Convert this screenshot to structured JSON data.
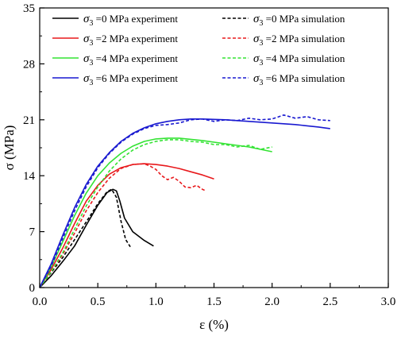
{
  "chart_data": {
    "type": "line",
    "xlabel": "ε (%)",
    "ylabel": "σ (MPa)",
    "xlim": [
      0.0,
      3.0
    ],
    "ylim": [
      0,
      35
    ],
    "x_ticks": [
      "0.0",
      "0.5",
      "1.0",
      "1.5",
      "2.0",
      "2.5",
      "3.0"
    ],
    "y_ticks": [
      "0",
      "7",
      "14",
      "21",
      "28",
      "35"
    ],
    "grid": false,
    "legend_position": "top",
    "legend_columns": 2,
    "series": [
      {
        "name": "σ3 =0 MPa experiment",
        "label_pre": "σ",
        "label_sub": "3",
        "label_post": " =0 MPa experiment",
        "color": "#000000",
        "style": "solid",
        "points": [
          [
            0,
            0
          ],
          [
            0.1,
            1.5
          ],
          [
            0.2,
            3.3
          ],
          [
            0.3,
            5.2
          ],
          [
            0.4,
            7.8
          ],
          [
            0.5,
            10.3
          ],
          [
            0.58,
            11.9
          ],
          [
            0.63,
            12.3
          ],
          [
            0.66,
            12.1
          ],
          [
            0.69,
            10.8
          ],
          [
            0.73,
            8.7
          ],
          [
            0.8,
            7.0
          ],
          [
            0.9,
            5.9
          ],
          [
            0.98,
            5.2
          ]
        ]
      },
      {
        "name": "σ3 =0 MPa simulation",
        "label_pre": "σ",
        "label_sub": "3",
        "label_post": " =0 MPa simulation",
        "color": "#000000",
        "style": "dashed",
        "points": [
          [
            0,
            0
          ],
          [
            0.1,
            1.9
          ],
          [
            0.2,
            3.8
          ],
          [
            0.3,
            6.0
          ],
          [
            0.4,
            8.2
          ],
          [
            0.5,
            10.5
          ],
          [
            0.58,
            12.0
          ],
          [
            0.62,
            12.3
          ],
          [
            0.66,
            11.3
          ],
          [
            0.7,
            8.3
          ],
          [
            0.74,
            6.0
          ],
          [
            0.78,
            5.1
          ]
        ]
      },
      {
        "name": "σ3 =2 MPa experiment",
        "label_pre": "σ",
        "label_sub": "3",
        "label_post": " =2 MPa experiment",
        "color": "#e8191c",
        "style": "solid",
        "points": [
          [
            0,
            0
          ],
          [
            0.1,
            2.3
          ],
          [
            0.2,
            5.0
          ],
          [
            0.3,
            8.0
          ],
          [
            0.4,
            10.8
          ],
          [
            0.5,
            12.8
          ],
          [
            0.6,
            14.2
          ],
          [
            0.7,
            15.0
          ],
          [
            0.8,
            15.4
          ],
          [
            0.9,
            15.5
          ],
          [
            1.0,
            15.4
          ],
          [
            1.1,
            15.2
          ],
          [
            1.2,
            14.9
          ],
          [
            1.3,
            14.5
          ],
          [
            1.4,
            14.1
          ],
          [
            1.5,
            13.6
          ]
        ]
      },
      {
        "name": "σ3 =2 MPa simulation",
        "label_pre": "σ",
        "label_sub": "3",
        "label_post": " =2 MPa simulation",
        "color": "#e8191c",
        "style": "dashed",
        "points": [
          [
            0,
            0
          ],
          [
            0.1,
            2.0
          ],
          [
            0.2,
            4.2
          ],
          [
            0.3,
            6.8
          ],
          [
            0.4,
            9.6
          ],
          [
            0.5,
            11.9
          ],
          [
            0.6,
            13.7
          ],
          [
            0.7,
            14.9
          ],
          [
            0.8,
            15.4
          ],
          [
            0.9,
            15.5
          ],
          [
            0.95,
            15.2
          ],
          [
            1.0,
            14.8
          ],
          [
            1.05,
            14.0
          ],
          [
            1.1,
            13.5
          ],
          [
            1.15,
            13.8
          ],
          [
            1.2,
            13.3
          ],
          [
            1.25,
            12.6
          ],
          [
            1.3,
            12.5
          ],
          [
            1.35,
            12.8
          ],
          [
            1.4,
            12.3
          ],
          [
            1.43,
            12.1
          ]
        ]
      },
      {
        "name": "σ3 =4 MPa experiment",
        "label_pre": "σ",
        "label_sub": "3",
        "label_post": " =4 MPa experiment",
        "color": "#33e333",
        "style": "solid",
        "points": [
          [
            0,
            0
          ],
          [
            0.1,
            2.6
          ],
          [
            0.2,
            5.8
          ],
          [
            0.3,
            9.0
          ],
          [
            0.4,
            11.8
          ],
          [
            0.5,
            14.0
          ],
          [
            0.6,
            15.6
          ],
          [
            0.7,
            16.8
          ],
          [
            0.8,
            17.7
          ],
          [
            0.9,
            18.3
          ],
          [
            1.0,
            18.6
          ],
          [
            1.1,
            18.7
          ],
          [
            1.2,
            18.7
          ],
          [
            1.4,
            18.4
          ],
          [
            1.6,
            18.0
          ],
          [
            1.8,
            17.6
          ],
          [
            2.0,
            17.0
          ]
        ]
      },
      {
        "name": "σ3 =4 MPa simulation",
        "label_pre": "σ",
        "label_sub": "3",
        "label_post": " =4 MPa simulation",
        "color": "#33e333",
        "style": "dashed",
        "points": [
          [
            0,
            0
          ],
          [
            0.1,
            2.0
          ],
          [
            0.2,
            4.4
          ],
          [
            0.3,
            7.3
          ],
          [
            0.4,
            10.2
          ],
          [
            0.5,
            12.6
          ],
          [
            0.6,
            14.6
          ],
          [
            0.7,
            16.1
          ],
          [
            0.8,
            17.2
          ],
          [
            0.9,
            17.9
          ],
          [
            1.0,
            18.3
          ],
          [
            1.1,
            18.5
          ],
          [
            1.2,
            18.5
          ],
          [
            1.3,
            18.3
          ],
          [
            1.4,
            18.2
          ],
          [
            1.5,
            17.9
          ],
          [
            1.6,
            17.9
          ],
          [
            1.7,
            17.6
          ],
          [
            1.8,
            17.8
          ],
          [
            1.9,
            17.3
          ],
          [
            2.0,
            17.6
          ]
        ]
      },
      {
        "name": "σ3 =6 MPa experiment",
        "label_pre": "σ",
        "label_sub": "3",
        "label_post": " =6 MPa experiment",
        "color": "#1919d0",
        "style": "solid",
        "points": [
          [
            0,
            0
          ],
          [
            0.1,
            3.0
          ],
          [
            0.2,
            6.6
          ],
          [
            0.3,
            10.0
          ],
          [
            0.4,
            12.9
          ],
          [
            0.5,
            15.2
          ],
          [
            0.6,
            16.9
          ],
          [
            0.7,
            18.3
          ],
          [
            0.8,
            19.3
          ],
          [
            0.9,
            20.0
          ],
          [
            1.0,
            20.5
          ],
          [
            1.1,
            20.8
          ],
          [
            1.2,
            21.0
          ],
          [
            1.3,
            21.1
          ],
          [
            1.4,
            21.1
          ],
          [
            1.6,
            21.0
          ],
          [
            1.8,
            20.8
          ],
          [
            2.0,
            20.6
          ],
          [
            2.2,
            20.4
          ],
          [
            2.4,
            20.1
          ],
          [
            2.5,
            19.9
          ]
        ]
      },
      {
        "name": "σ3 =6 MPa simulation",
        "label_pre": "σ",
        "label_sub": "3",
        "label_post": " =6 MPa simulation",
        "color": "#1919d0",
        "style": "dashed",
        "points": [
          [
            0,
            0
          ],
          [
            0.1,
            2.7
          ],
          [
            0.2,
            6.2
          ],
          [
            0.3,
            9.6
          ],
          [
            0.4,
            12.6
          ],
          [
            0.5,
            15.0
          ],
          [
            0.6,
            16.8
          ],
          [
            0.7,
            18.2
          ],
          [
            0.8,
            19.2
          ],
          [
            0.9,
            19.9
          ],
          [
            1.0,
            20.3
          ],
          [
            1.1,
            20.4
          ],
          [
            1.2,
            20.6
          ],
          [
            1.3,
            21.0
          ],
          [
            1.4,
            21.1
          ],
          [
            1.5,
            20.8
          ],
          [
            1.6,
            21.0
          ],
          [
            1.7,
            20.9
          ],
          [
            1.8,
            21.2
          ],
          [
            1.9,
            21.0
          ],
          [
            2.0,
            21.1
          ],
          [
            2.1,
            21.6
          ],
          [
            2.2,
            21.2
          ],
          [
            2.3,
            21.4
          ],
          [
            2.4,
            21.0
          ],
          [
            2.5,
            20.9
          ]
        ]
      }
    ]
  }
}
